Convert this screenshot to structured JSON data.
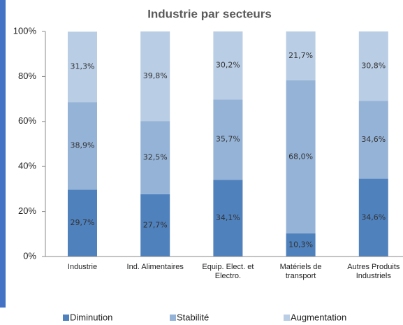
{
  "chart_data": {
    "type": "stacked-bar",
    "title": "Industrie par secteurs",
    "categories": [
      "Industrie",
      "Ind. Alimentaires",
      "Equip. Elect. et\nElectro.",
      "Matériels de\ntransport",
      "Autres Produits\nIndustriels"
    ],
    "series": [
      {
        "name": "Diminution",
        "color": "#4f81bd",
        "values": [
          29.7,
          27.7,
          34.1,
          10.3,
          34.6
        ],
        "value_labels": [
          "29,7%",
          "27,7%",
          "34,1%",
          "10,3%",
          "34,6%"
        ]
      },
      {
        "name": "Stabilité",
        "color": "#95b3d7",
        "values": [
          38.9,
          32.5,
          35.7,
          68.0,
          34.6
        ],
        "value_labels": [
          "38,9%",
          "32,5%",
          "35,7%",
          "68,0%",
          "34,6%"
        ]
      },
      {
        "name": "Augmentation",
        "color": "#b9cde5",
        "values": [
          31.3,
          39.8,
          30.2,
          21.7,
          30.8
        ],
        "value_labels": [
          "31,3%",
          "39,8%",
          "30,2%",
          "21,7%",
          "30,8%"
        ]
      }
    ],
    "ylim": [
      0,
      100
    ],
    "yticks": [
      {
        "value": 0,
        "label": "0%"
      },
      {
        "value": 20,
        "label": "20%"
      },
      {
        "value": 40,
        "label": "40%"
      },
      {
        "value": 60,
        "label": "60%"
      },
      {
        "value": 80,
        "label": "80%"
      },
      {
        "value": 100,
        "label": "100%"
      }
    ],
    "legend": "bottom"
  }
}
